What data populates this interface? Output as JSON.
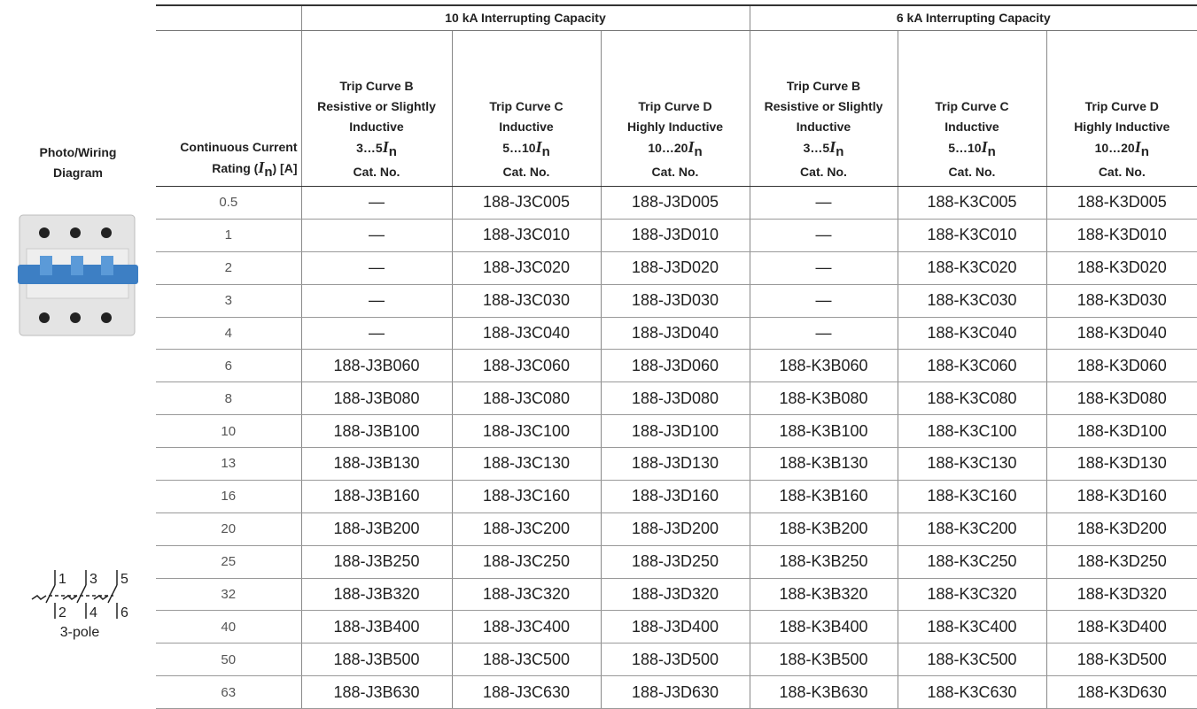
{
  "header": {
    "photo": [
      "Photo/Wiring",
      "Diagram"
    ],
    "current": {
      "line1": "Continuous Current",
      "pre": "Rating (",
      "symbol": "I",
      "subscript": "n",
      "post": ") [A]"
    }
  },
  "groups": [
    "10 kA Interrupting Capacity",
    "6 kA Interrupting Capacity"
  ],
  "columns": [
    {
      "lines": [
        "Trip Curve B",
        "Resistive or Slightly",
        "Inductive"
      ],
      "range": "3…5",
      "symbol": "I",
      "subscript": "n",
      "cat": "Cat. No."
    },
    {
      "lines": [
        "Trip Curve C",
        "Inductive"
      ],
      "range": "5…10",
      "symbol": "I",
      "subscript": "n",
      "cat": "Cat. No."
    },
    {
      "lines": [
        "Trip Curve D",
        "Highly Inductive"
      ],
      "range": "10…20",
      "symbol": "I",
      "subscript": "n",
      "cat": "Cat. No."
    },
    {
      "lines": [
        "Trip Curve B",
        "Resistive or Slightly",
        "Inductive"
      ],
      "range": "3…5",
      "symbol": "I",
      "subscript": "n",
      "cat": "Cat. No."
    },
    {
      "lines": [
        "Trip Curve C",
        "Inductive"
      ],
      "range": "5…10",
      "symbol": "I",
      "subscript": "n",
      "cat": "Cat. No."
    },
    {
      "lines": [
        "Trip Curve D",
        "Highly Inductive"
      ],
      "range": "10…20",
      "symbol": "I",
      "subscript": "n",
      "cat": "Cat. No."
    }
  ],
  "diagram": {
    "top": [
      "1",
      "3",
      "5"
    ],
    "bottom": [
      "2",
      "4",
      "6"
    ],
    "caption": "3-pole"
  },
  "rows": [
    {
      "current": "0.5",
      "cells": [
        "—",
        "188-J3C005",
        "188-J3D005",
        "—",
        "188-K3C005",
        "188-K3D005"
      ]
    },
    {
      "current": "1",
      "cells": [
        "—",
        "188-J3C010",
        "188-J3D010",
        "—",
        "188-K3C010",
        "188-K3D010"
      ]
    },
    {
      "current": "2",
      "cells": [
        "—",
        "188-J3C020",
        "188-J3D020",
        "—",
        "188-K3C020",
        "188-K3D020"
      ]
    },
    {
      "current": "3",
      "cells": [
        "—",
        "188-J3C030",
        "188-J3D030",
        "—",
        "188-K3C030",
        "188-K3D030"
      ]
    },
    {
      "current": "4",
      "cells": [
        "—",
        "188-J3C040",
        "188-J3D040",
        "—",
        "188-K3C040",
        "188-K3D040"
      ]
    },
    {
      "current": "6",
      "cells": [
        "188-J3B060",
        "188-J3C060",
        "188-J3D060",
        "188-K3B060",
        "188-K3C060",
        "188-K3D060"
      ]
    },
    {
      "current": "8",
      "cells": [
        "188-J3B080",
        "188-J3C080",
        "188-J3D080",
        "188-K3B080",
        "188-K3C080",
        "188-K3D080"
      ]
    },
    {
      "current": "10",
      "cells": [
        "188-J3B100",
        "188-J3C100",
        "188-J3D100",
        "188-K3B100",
        "188-K3C100",
        "188-K3D100"
      ]
    },
    {
      "current": "13",
      "cells": [
        "188-J3B130",
        "188-J3C130",
        "188-J3D130",
        "188-K3B130",
        "188-K3C130",
        "188-K3D130"
      ]
    },
    {
      "current": "16",
      "cells": [
        "188-J3B160",
        "188-J3C160",
        "188-J3D160",
        "188-K3B160",
        "188-K3C160",
        "188-K3D160"
      ]
    },
    {
      "current": "20",
      "cells": [
        "188-J3B200",
        "188-J3C200",
        "188-J3D200",
        "188-K3B200",
        "188-K3C200",
        "188-K3D200"
      ]
    },
    {
      "current": "25",
      "cells": [
        "188-J3B250",
        "188-J3C250",
        "188-J3D250",
        "188-K3B250",
        "188-K3C250",
        "188-K3D250"
      ]
    },
    {
      "current": "32",
      "cells": [
        "188-J3B320",
        "188-J3C320",
        "188-J3D320",
        "188-K3B320",
        "188-K3C320",
        "188-K3D320"
      ]
    },
    {
      "current": "40",
      "cells": [
        "188-J3B400",
        "188-J3C400",
        "188-J3D400",
        "188-K3B400",
        "188-K3C400",
        "188-K3D400"
      ]
    },
    {
      "current": "50",
      "cells": [
        "188-J3B500",
        "188-J3C500",
        "188-J3D500",
        "188-K3B500",
        "188-K3C500",
        "188-K3D500"
      ]
    },
    {
      "current": "63",
      "cells": [
        "188-J3B630",
        "188-J3C630",
        "188-J3D630",
        "188-K3B630",
        "188-K3C630",
        "188-K3D630"
      ]
    }
  ]
}
